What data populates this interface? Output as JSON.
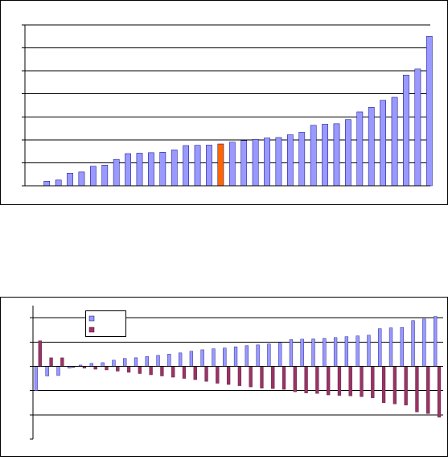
{
  "colors": {
    "bar_blue": "#9999ff",
    "bar_highlight": "#ff6600",
    "bar_dark": "#993366",
    "grid": "#000000",
    "frame": "#000000"
  },
  "chart_data": [
    {
      "type": "bar",
      "title": "",
      "xlabel": "",
      "ylabel": "",
      "grid": true,
      "gridlines": [
        1,
        2,
        3,
        4,
        5,
        6,
        7
      ],
      "ylim": [
        0,
        7
      ],
      "highlight_index": 15,
      "values": [
        0.2,
        0.25,
        0.55,
        0.6,
        0.85,
        0.9,
        1.15,
        1.4,
        1.42,
        1.44,
        1.46,
        1.56,
        1.75,
        1.76,
        1.77,
        1.82,
        1.9,
        1.97,
        2.02,
        2.08,
        2.1,
        2.22,
        2.33,
        2.63,
        2.68,
        2.7,
        2.88,
        3.22,
        3.42,
        3.72,
        3.85,
        4.82,
        5.08,
        6.5
      ]
    },
    {
      "type": "bar",
      "title": "",
      "xlabel": "",
      "ylabel": "",
      "grid": true,
      "gridlines": [
        -2,
        -1,
        1,
        2
      ],
      "ylim": [
        -3,
        2.5
      ],
      "legend_position": "top-left",
      "series": [
        {
          "values": [
            -1.0,
            -0.4,
            -0.38,
            -0.08,
            0.05,
            0.12,
            0.15,
            0.25,
            0.32,
            0.35,
            0.4,
            0.45,
            0.5,
            0.55,
            0.62,
            0.68,
            0.72,
            0.75,
            0.8,
            0.85,
            0.88,
            0.92,
            0.95,
            1.1,
            1.12,
            1.13,
            1.15,
            1.18,
            1.22,
            1.25,
            1.28,
            1.55,
            1.58,
            1.6,
            1.88,
            1.95,
            2.05
          ]
        },
        {
          "values": [
            1.05,
            0.35,
            0.35,
            -0.05,
            -0.08,
            -0.12,
            -0.15,
            -0.2,
            -0.25,
            -0.3,
            -0.35,
            -0.4,
            -0.45,
            -0.5,
            -0.55,
            -0.62,
            -0.7,
            -0.75,
            -0.8,
            -0.85,
            -0.9,
            -0.92,
            -0.95,
            -1.05,
            -1.1,
            -1.12,
            -1.18,
            -1.2,
            -1.22,
            -1.25,
            -1.3,
            -1.5,
            -1.55,
            -1.6,
            -1.88,
            -1.95,
            -2.1
          ]
        }
      ]
    }
  ]
}
